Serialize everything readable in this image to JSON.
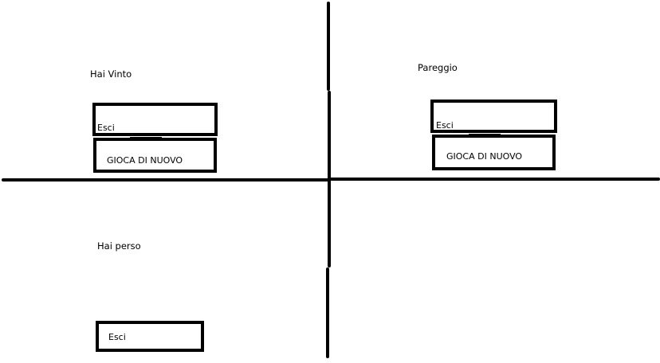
{
  "mockups": {
    "win": {
      "message": "Hai Vinto",
      "exit_label": "Esci",
      "replay_label": "GIOCA DI NUOVO"
    },
    "draw": {
      "message": "Pareggio",
      "exit_label": "Esci",
      "replay_label": "GIOCA DI NUOVO"
    },
    "lose": {
      "message": "Hai perso",
      "exit_label": "Esci"
    }
  },
  "colors": {
    "background": "#ffffff",
    "stroke": "#000000"
  }
}
